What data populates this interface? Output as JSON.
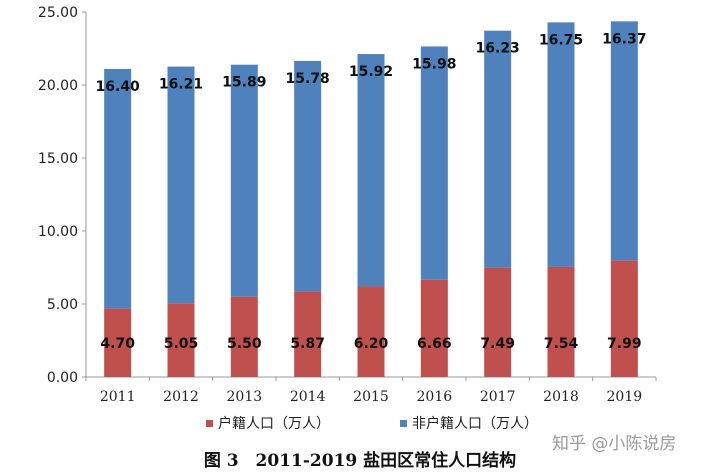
{
  "chart_data": {
    "type": "bar",
    "stacked": true,
    "categories": [
      "2011",
      "2012",
      "2013",
      "2014",
      "2015",
      "2016",
      "2017",
      "2018",
      "2019"
    ],
    "series": [
      {
        "name": "户籍人口（万人）",
        "color": "#c0504d",
        "values": [
          4.7,
          5.05,
          5.5,
          5.87,
          6.2,
          6.66,
          7.49,
          7.54,
          7.99
        ],
        "labels": [
          "4.70",
          "5.05",
          "5.50",
          "5.87",
          "6.20",
          "6.66",
          "7.49",
          "7.54",
          "7.99"
        ]
      },
      {
        "name": "非户籍人口（万人）",
        "color": "#4f81bd",
        "values": [
          16.4,
          16.21,
          15.89,
          15.78,
          15.92,
          15.98,
          16.23,
          16.75,
          16.37
        ],
        "labels": [
          "16.40",
          "16.21",
          "15.89",
          "15.78",
          "15.92",
          "15.98",
          "16.23",
          "16.75",
          "16.37"
        ]
      }
    ],
    "ylim": [
      0,
      25
    ],
    "yticks": [
      "0.00",
      "5.00",
      "10.00",
      "15.00",
      "20.00",
      "25.00"
    ],
    "grid": false,
    "legend_position": "bottom",
    "caption": "图 3　2011-2019 盐田区常住人口结构"
  },
  "watermark": "知乎 @小陈说房"
}
